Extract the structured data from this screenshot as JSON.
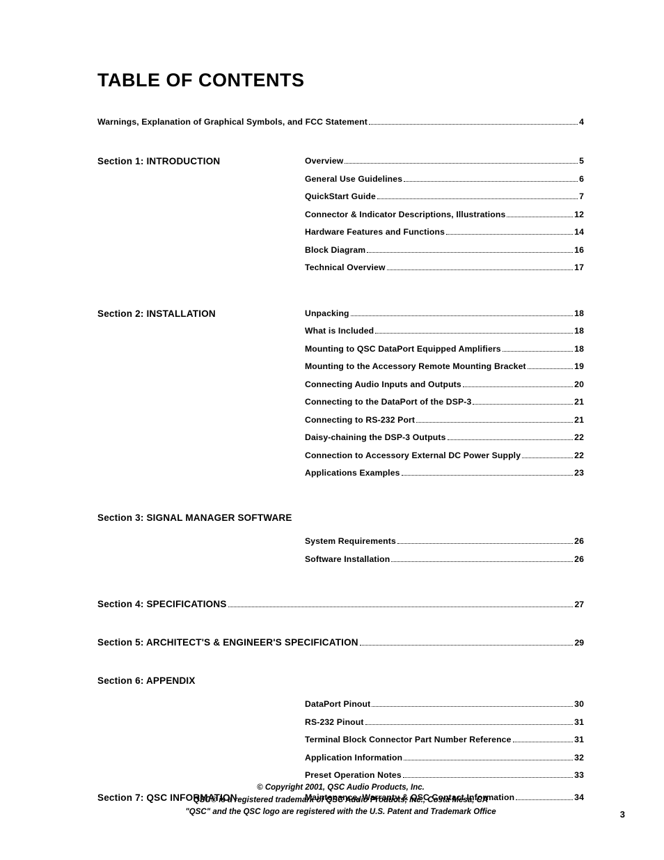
{
  "title": "TABLE OF CONTENTS",
  "top_entry": {
    "label": "Warnings, Explanation of Graphical Symbols, and FCC Statement",
    "page": "4"
  },
  "sections": [
    {
      "heading": "Section 1: INTRODUCTION",
      "items": [
        {
          "label": "Overview",
          "page": "5"
        },
        {
          "label": "General Use Guidelines",
          "page": "6"
        },
        {
          "label": "QuickStart Guide",
          "page": "7"
        },
        {
          "label": "Connector & Indicator Descriptions, Illustrations",
          "page": "12"
        },
        {
          "label": "Hardware Features and Functions",
          "page": "14"
        },
        {
          "label": "Block Diagram",
          "page": "16"
        },
        {
          "label": "Technical Overview",
          "page": "17"
        }
      ]
    },
    {
      "heading": "Section 2: INSTALLATION",
      "items": [
        {
          "label": "Unpacking",
          "page": "18"
        },
        {
          "label": "What is Included",
          "page": "18"
        },
        {
          "label": "Mounting to QSC DataPort Equipped Amplifiers",
          "page": "18"
        },
        {
          "label": "Mounting to the Accessory Remote Mounting Bracket",
          "page": "19"
        },
        {
          "label": "Connecting Audio Inputs and Outputs",
          "page": "20"
        },
        {
          "label": "Connecting to the DataPort of the DSP-3",
          "page": "21"
        },
        {
          "label": "Connecting to RS-232 Port",
          "page": "21"
        },
        {
          "label": "Daisy-chaining the DSP-3 Outputs",
          "page": "22"
        },
        {
          "label": "Connection to Accessory External DC Power Supply",
          "page": "22"
        },
        {
          "label": "Applications Examples",
          "page": "23"
        }
      ]
    },
    {
      "heading": "Section 3: SIGNAL MANAGER SOFTWARE",
      "heading_own_line": true,
      "items": [
        {
          "label": "System Requirements",
          "page": "26"
        },
        {
          "label": "Software Installation",
          "page": "26"
        }
      ]
    }
  ],
  "inline_sections": [
    {
      "heading": "Section 4:  SPECIFICATIONS",
      "page": "27"
    },
    {
      "heading": "Section 5:  ARCHITECT'S & ENGINEER'S SPECIFICATION",
      "page": "29"
    }
  ],
  "appendix": {
    "heading": "Section 6: APPENDIX",
    "items": [
      {
        "label": "DataPort Pinout",
        "page": "30"
      },
      {
        "label": "RS-232 Pinout ",
        "page": "31"
      },
      {
        "label": "Terminal Block Connector Part Number Reference",
        "page": "31"
      },
      {
        "label": "Application Information",
        "page": "32"
      },
      {
        "label": "Preset Operation Notes",
        "page": "33"
      }
    ]
  },
  "section7": {
    "heading": "Section 7: QSC INFORMATION",
    "item": {
      "label": "Maintenance, Warranty & QSC Contact Information",
      "page": "34"
    }
  },
  "footer": {
    "line1": "© Copyright 2001, QSC Audio Products, Inc.",
    "line2": "QSC® is a registered trademark of QSC Audio Products, Inc., Costa Mesa, CA",
    "line3": "\"QSC\" and the QSC logo are registered with the U.S. Patent and Trademark Office"
  },
  "page_number": "3"
}
